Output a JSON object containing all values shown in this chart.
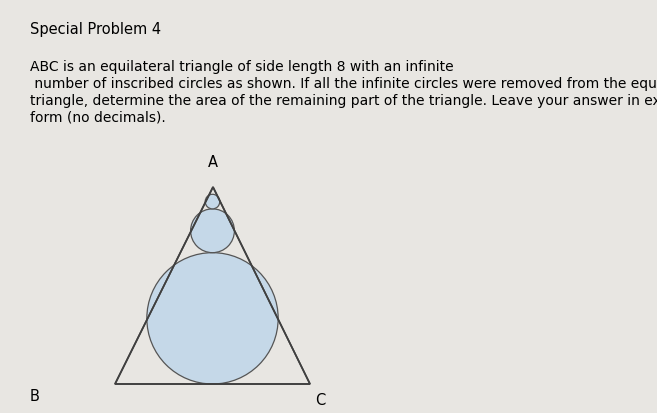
{
  "background_color": "#e8e6e2",
  "title": "Special Problem 4",
  "title_fontsize": 10.5,
  "body_text_line1": "ABC is an equilateral triangle of side length 8 with an infinite",
  "body_text_line2": " number of inscribed circles as shown. If all the infinite circles were removed from the equilateral",
  "body_text_line3": "triangle, determine the area of the remaining part of the triangle. Leave your answer in exact",
  "body_text_line4": "form (no decimals).",
  "body_fontsize": 10.0,
  "label_A": "A",
  "label_B": "B",
  "label_C": "C",
  "triangle_edge_color": "#404040",
  "triangle_linewidth": 1.2,
  "circle_fill_color": "#c5d8e8",
  "circle_edge_color": "#555555",
  "circle_linewidth": 0.9,
  "bg_color": "#e8e6e2"
}
